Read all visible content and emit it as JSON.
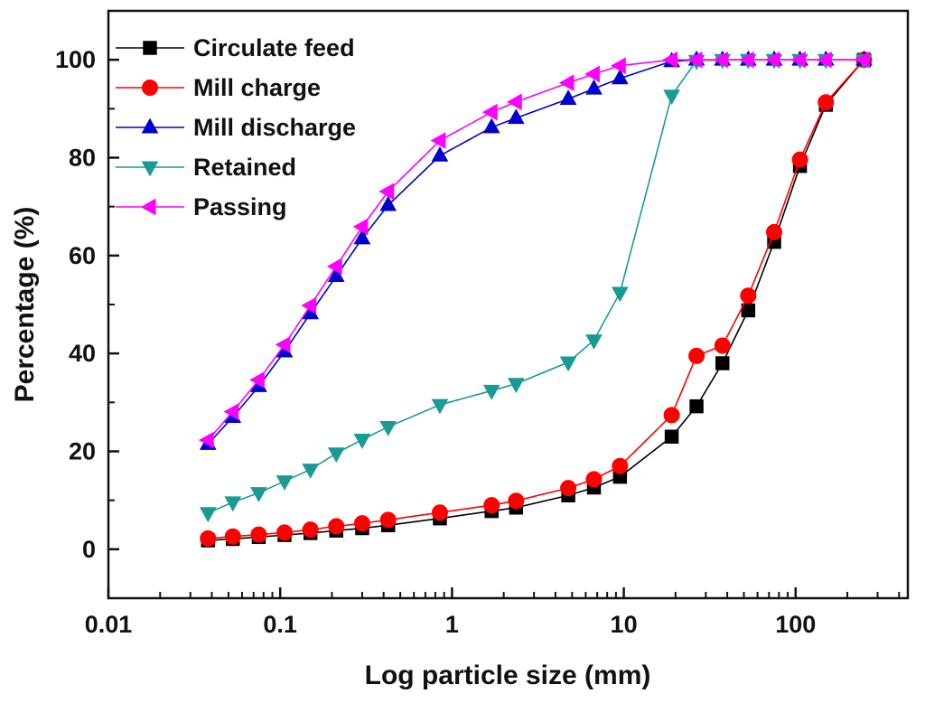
{
  "chart_data": {
    "type": "line",
    "xscale": "log",
    "xlabel": "Log particle size (mm)",
    "ylabel": "Percentage (%)",
    "xlim": [
      0.01,
      450
    ],
    "ylim": [
      -10,
      110
    ],
    "xticks": [
      0.01,
      0.1,
      1,
      10,
      100
    ],
    "xtick_labels": [
      "0.01",
      "0.1",
      "1",
      "10",
      "100"
    ],
    "yticks": [
      0,
      20,
      40,
      60,
      80,
      100
    ],
    "ytick_labels": [
      "0",
      "20",
      "40",
      "60",
      "80",
      "100"
    ],
    "legend_position": "top-left",
    "x": [
      0.038,
      0.053,
      0.075,
      0.106,
      0.15,
      0.212,
      0.3,
      0.425,
      0.85,
      1.7,
      2.36,
      4.75,
      6.7,
      9.5,
      19,
      26.5,
      37.5,
      53,
      75,
      106,
      150,
      250
    ],
    "series": [
      {
        "name": "Circulate feed",
        "color": "#000000",
        "marker": "square",
        "values": [
          1.8,
          2.1,
          2.5,
          2.9,
          3.3,
          3.8,
          4.3,
          4.9,
          6.3,
          7.8,
          8.5,
          11.0,
          12.6,
          14.8,
          23.0,
          29.2,
          38.0,
          48.8,
          62.8,
          78.3,
          90.8,
          100
        ]
      },
      {
        "name": "Mill charge",
        "color": "#ff0000",
        "marker": "circle",
        "values": [
          2.2,
          2.6,
          3.0,
          3.4,
          4.0,
          4.7,
          5.3,
          6.0,
          7.5,
          9.0,
          9.9,
          12.5,
          14.3,
          17.0,
          27.4,
          39.5,
          41.6,
          51.8,
          64.8,
          79.6,
          91.3,
          100
        ]
      },
      {
        "name": "Mill discharge",
        "color": "#0000cc",
        "marker": "triangle-up",
        "values": [
          21.5,
          27.0,
          33.3,
          40.4,
          48.2,
          55.8,
          63.5,
          70.3,
          80.4,
          86.2,
          88.1,
          92.0,
          94.1,
          96.2,
          99.7,
          100,
          100,
          100,
          100,
          100,
          100,
          100
        ]
      },
      {
        "name": "Retained",
        "color": "#1a9a94",
        "marker": "triangle-down",
        "values": [
          7.4,
          9.6,
          11.5,
          13.9,
          16.3,
          19.6,
          22.4,
          25.0,
          29.5,
          32.4,
          33.8,
          38.2,
          42.7,
          52.4,
          92.7,
          99.8,
          100,
          100,
          100,
          100,
          100,
          100
        ]
      },
      {
        "name": "Passing",
        "color": "#ff00ff",
        "marker": "triangle-left",
        "values": [
          22.3,
          28.1,
          34.6,
          41.8,
          49.8,
          57.8,
          65.9,
          73.1,
          83.5,
          89.3,
          91.4,
          95.3,
          97.1,
          98.8,
          100,
          100,
          100,
          100,
          100,
          100,
          100,
          100
        ]
      }
    ]
  }
}
